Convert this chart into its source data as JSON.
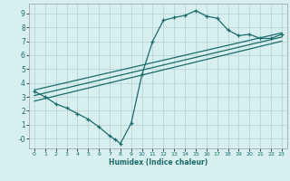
{
  "title": "",
  "xlabel": "Humidex (Indice chaleur)",
  "bg_color": "#d8efef",
  "grid_color": "#c0d8d8",
  "line_color": "#1a6b6b",
  "xlim": [
    -0.5,
    23.5
  ],
  "ylim": [
    -0.7,
    9.7
  ],
  "xticks": [
    0,
    1,
    2,
    3,
    4,
    5,
    6,
    7,
    8,
    9,
    10,
    11,
    12,
    13,
    14,
    15,
    16,
    17,
    18,
    19,
    20,
    21,
    22,
    23
  ],
  "yticks": [
    0,
    1,
    2,
    3,
    4,
    5,
    6,
    7,
    8,
    9
  ],
  "ytick_labels": [
    "0",
    "1",
    "2",
    "3",
    "4",
    "5",
    "6",
    "7",
    "8",
    "9"
  ],
  "extra_ytick_labels": [
    "-0"
  ],
  "main_x": [
    0,
    1,
    2,
    3,
    4,
    5,
    6,
    7,
    7.5,
    8,
    9,
    10,
    11,
    12,
    13,
    14,
    15,
    16,
    17,
    18,
    19,
    20,
    21,
    22,
    23
  ],
  "main_y": [
    3.4,
    3.0,
    2.5,
    2.2,
    1.8,
    1.4,
    0.85,
    0.2,
    -0.05,
    -0.35,
    1.1,
    4.6,
    7.0,
    8.5,
    8.7,
    8.85,
    9.2,
    8.8,
    8.65,
    7.8,
    7.4,
    7.5,
    7.2,
    7.2,
    7.5
  ],
  "line1_x": [
    0,
    23
  ],
  "line1_y": [
    3.5,
    7.6
  ],
  "line2_x": [
    0,
    23
  ],
  "line2_y": [
    3.1,
    7.3
  ],
  "line3_x": [
    0,
    23
  ],
  "line3_y": [
    2.7,
    7.0
  ]
}
